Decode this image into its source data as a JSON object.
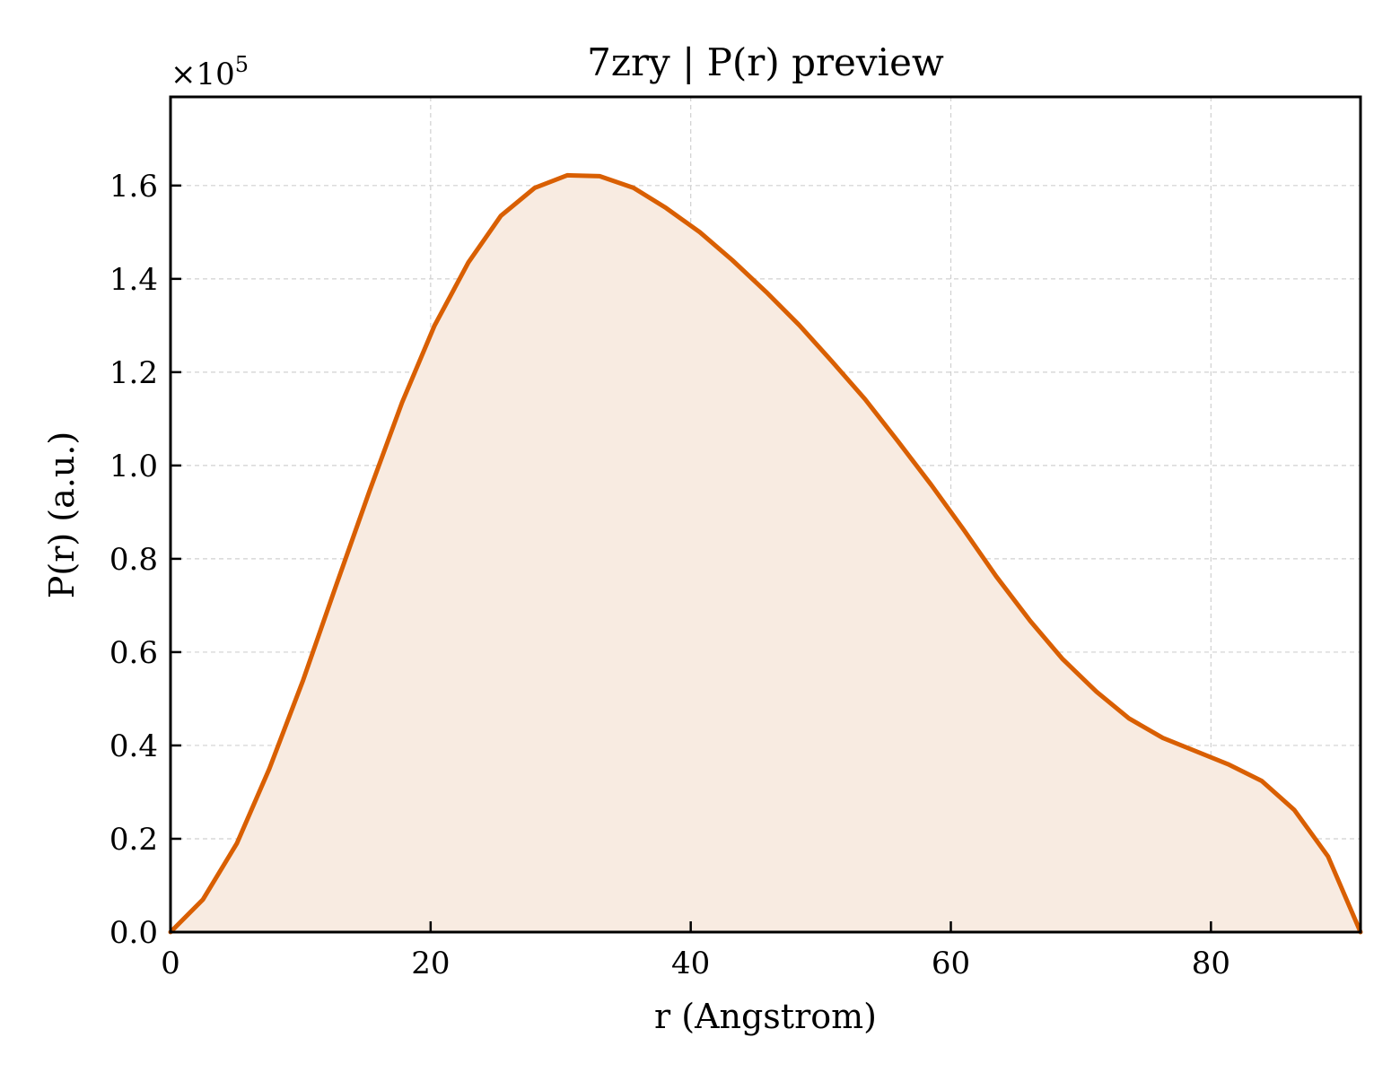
{
  "chart_data": {
    "type": "area",
    "title": "7zry | P(r) preview",
    "xlabel": "r (Angstrom)",
    "ylabel": "P(r) (a.u.)",
    "y_multiplier_label": "×10",
    "y_multiplier_exponent": "5",
    "xlim": [
      0,
      91.5
    ],
    "ylim": [
      0,
      1.79
    ],
    "xticks": [
      0,
      20,
      40,
      60,
      80
    ],
    "xtick_labels": [
      "0",
      "20",
      "40",
      "60",
      "80"
    ],
    "yticks": [
      0.0,
      0.2,
      0.4,
      0.6,
      0.8,
      1.0,
      1.2,
      1.4,
      1.6
    ],
    "ytick_labels": [
      "0.0",
      "0.2",
      "0.4",
      "0.6",
      "0.8",
      "1.0",
      "1.2",
      "1.4",
      "1.6"
    ],
    "grid": true,
    "colors": {
      "line": "#d95f02",
      "fill": "#f8ebe1",
      "grid": "#d0d0d0"
    },
    "series": [
      {
        "x": [
          0,
          2.5,
          5.1,
          7.6,
          10.2,
          12.7,
          15.3,
          17.8,
          20.3,
          22.9,
          25.4,
          28.0,
          30.5,
          33.0,
          35.6,
          38.1,
          40.7,
          43.2,
          45.8,
          48.3,
          50.8,
          53.4,
          55.9,
          58.5,
          61.0,
          63.5,
          66.1,
          68.6,
          71.2,
          73.7,
          76.3,
          78.8,
          81.3,
          83.9,
          86.4,
          89.0,
          91.5
        ],
        "y": [
          0.0,
          0.07,
          0.19,
          0.35,
          0.54,
          0.74,
          0.945,
          1.135,
          1.3,
          1.435,
          1.535,
          1.595,
          1.622,
          1.62,
          1.595,
          1.552,
          1.5,
          1.44,
          1.372,
          1.302,
          1.225,
          1.142,
          1.053,
          0.958,
          0.862,
          0.762,
          0.667,
          0.585,
          0.515,
          0.458,
          0.416,
          0.388,
          0.36,
          0.324,
          0.262,
          0.162,
          0.0
        ]
      }
    ]
  }
}
